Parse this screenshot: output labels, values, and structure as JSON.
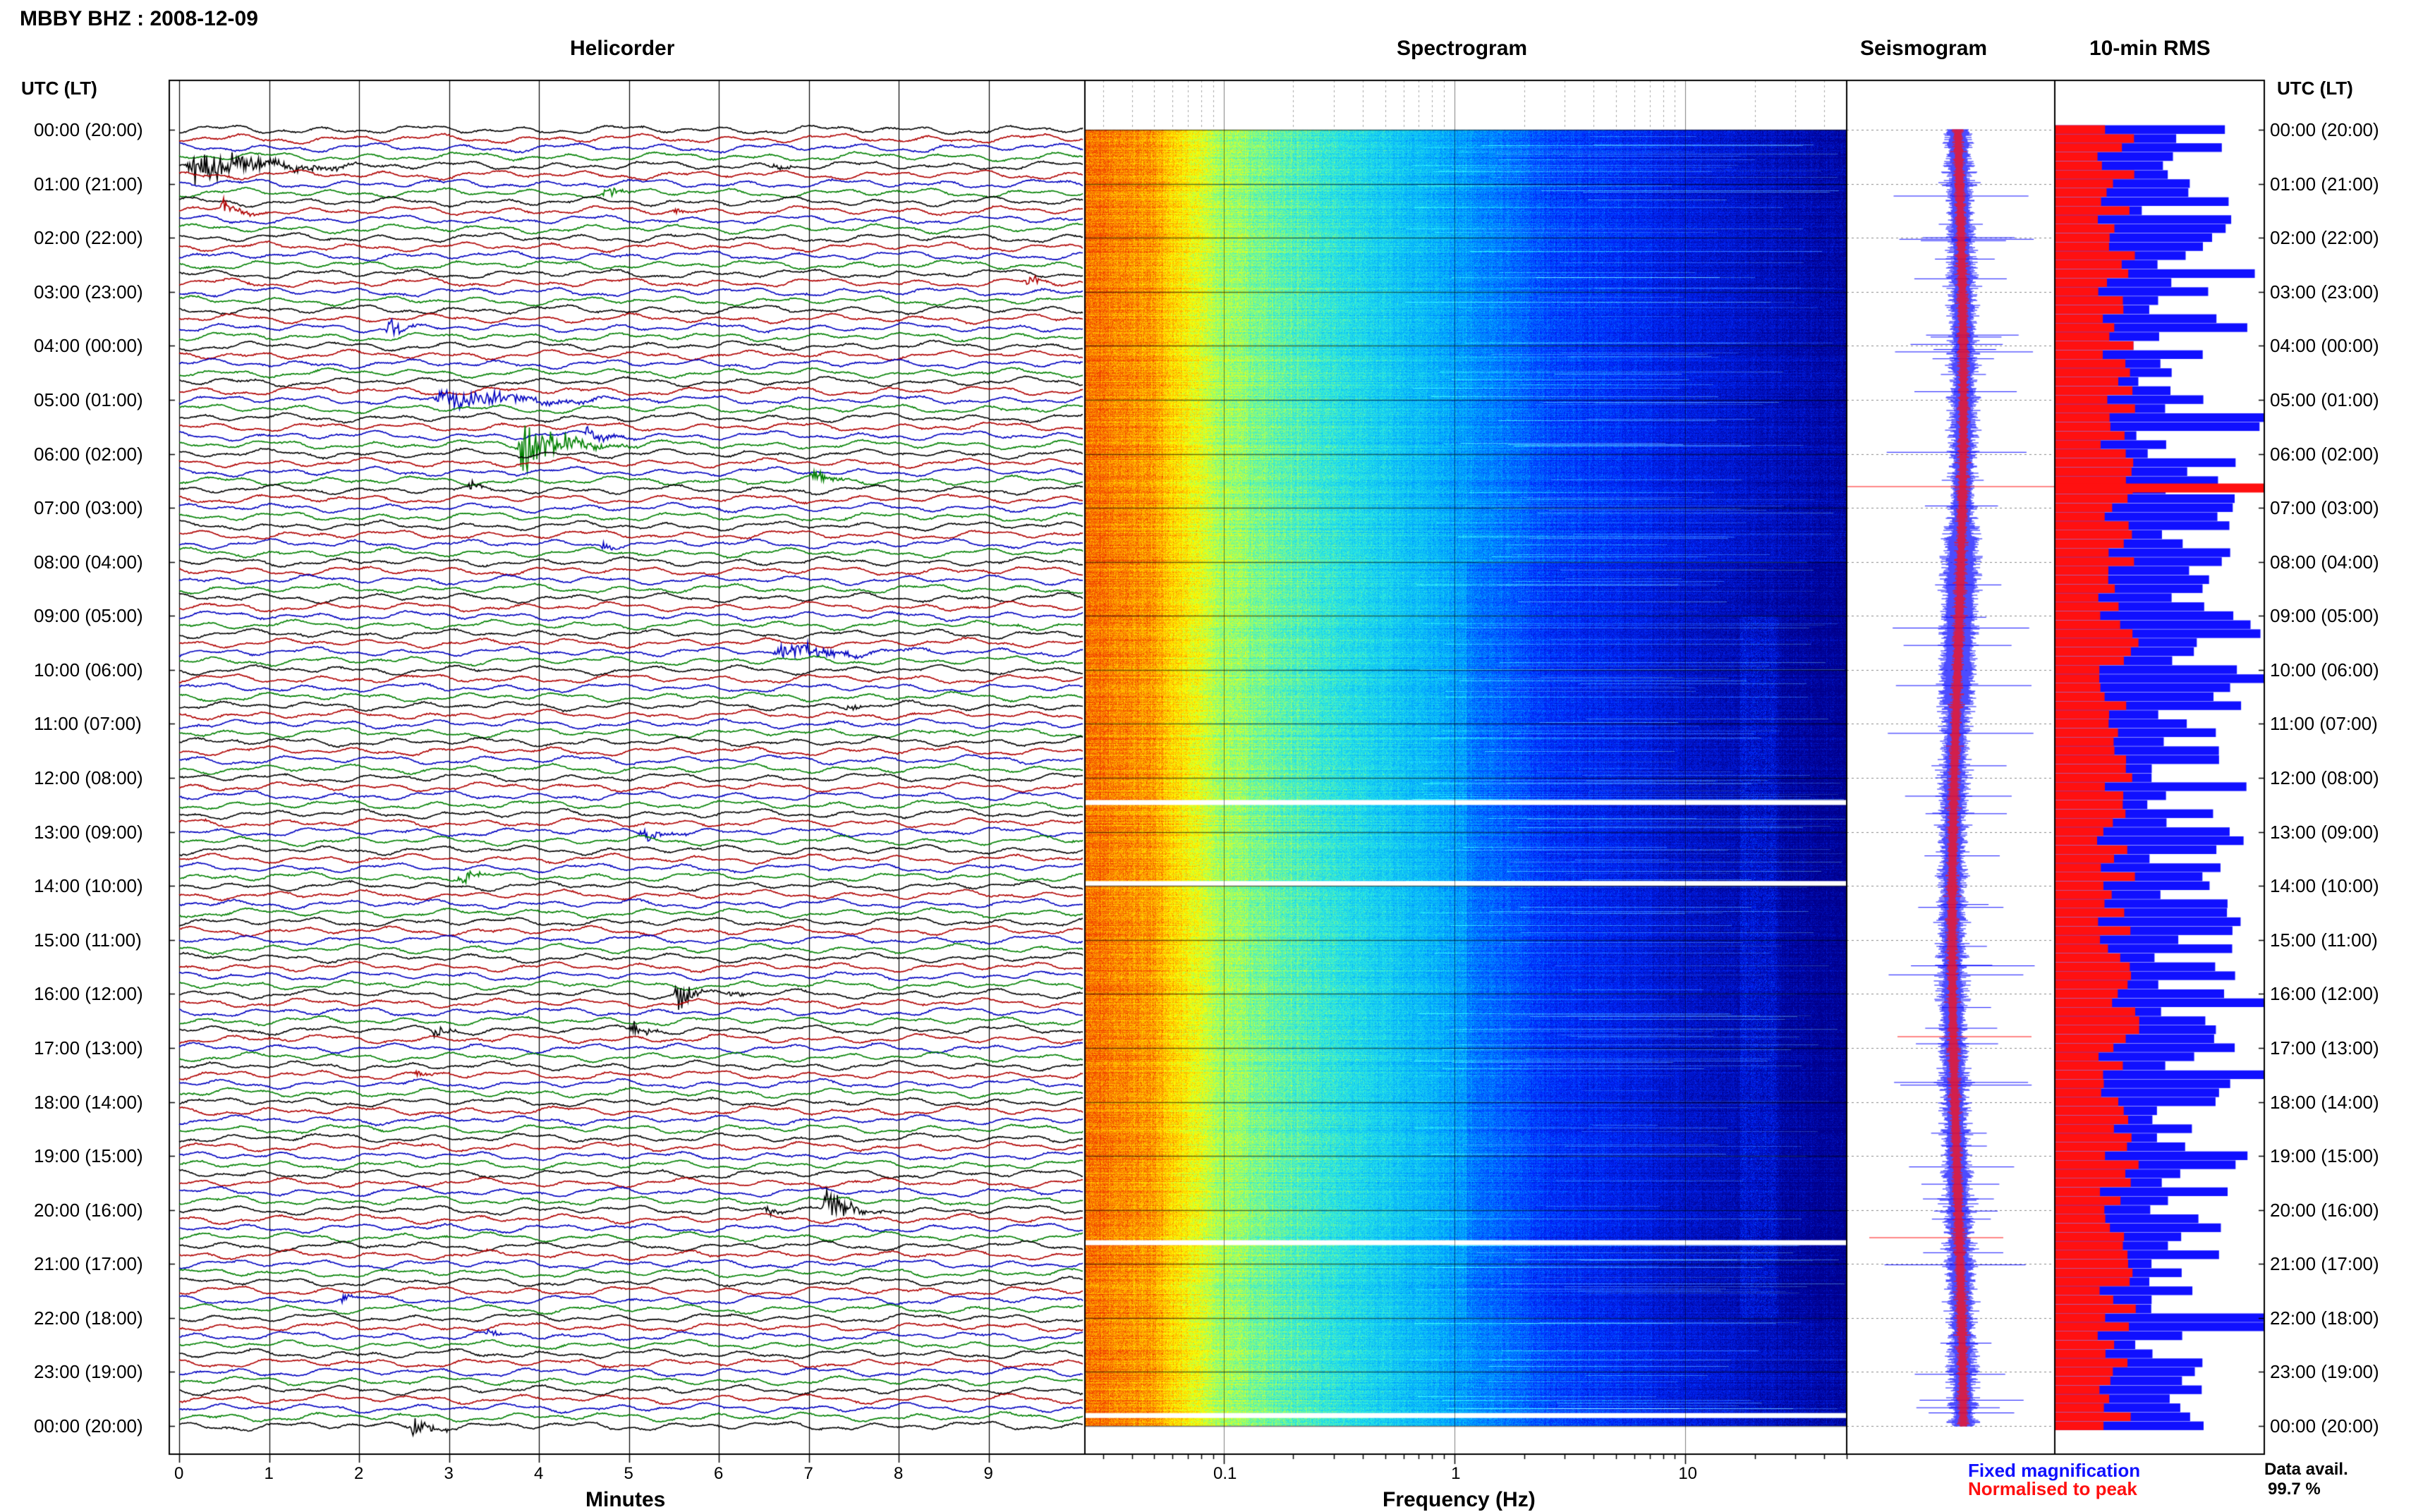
{
  "header": {
    "station_title": "MBBY BHZ : 2008-12-09"
  },
  "panels": {
    "helicorder": "Helicorder",
    "spectrogram": "Spectrogram",
    "seismogram": "Seismogram",
    "rms": "10-min RMS"
  },
  "axes": {
    "time_header_left": "UTC (LT)",
    "time_header_right": "UTC (LT)",
    "helicorder_xlabel": "Minutes",
    "spectrogram_xlabel": "Frequency (Hz)"
  },
  "legend": {
    "fixed_label": "Fixed magnification",
    "fixed_color": "#1010ff",
    "normalised_label": "Normalised to peak",
    "normalised_color": "#ff1010"
  },
  "availability": {
    "label": "Data avail.",
    "value": "99.7 %"
  },
  "chart_data": [
    {
      "type": "line",
      "title": "Helicorder",
      "xlabel": "Minutes",
      "x_ticks": [
        "0",
        "1",
        "2",
        "3",
        "4",
        "5",
        "6",
        "7",
        "8",
        "9"
      ],
      "x_range": [
        0,
        10
      ],
      "row_labels": [
        "00:00 (20:00)",
        "01:00 (21:00)",
        "02:00 (22:00)",
        "03:00 (23:00)",
        "04:00 (00:00)",
        "05:00 (01:00)",
        "06:00 (02:00)",
        "07:00 (03:00)",
        "08:00 (04:00)",
        "09:00 (05:00)",
        "10:00 (06:00)",
        "11:00 (07:00)",
        "12:00 (08:00)",
        "13:00 (09:00)",
        "14:00 (10:00)",
        "15:00 (11:00)",
        "16:00 (12:00)",
        "17:00 (13:00)",
        "18:00 (14:00)",
        "19:00 (15:00)",
        "20:00 (16:00)",
        "21:00 (17:00)",
        "22:00 (18:00)",
        "23:00 (19:00)",
        "00:00 (20:00)"
      ],
      "traces_per_hour": 6,
      "trace_colors": [
        "#000000",
        "#b00000",
        "#0000c0",
        "#008000"
      ],
      "events": [
        {
          "row": 4,
          "minute": 0.05,
          "amp": 2.6,
          "len": 3.2
        },
        {
          "row": 4,
          "minute": 6.6,
          "amp": 0.9,
          "len": 0.5
        },
        {
          "row": 9,
          "minute": 0.45,
          "amp": 1.3,
          "len": 0.9
        },
        {
          "row": 7,
          "minute": 4.7,
          "amp": 1.4,
          "len": 0.6
        },
        {
          "row": 9,
          "minute": 5.5,
          "amp": 0.7,
          "len": 0.6
        },
        {
          "row": 17,
          "minute": 9.4,
          "amp": 1.3,
          "len": 0.5
        },
        {
          "row": 22,
          "minute": 2.3,
          "amp": 2.0,
          "len": 0.6
        },
        {
          "row": 30,
          "minute": 2.8,
          "amp": 2.2,
          "len": 3.2
        },
        {
          "row": 35,
          "minute": 3.75,
          "amp": 4.5,
          "len": 1.8
        },
        {
          "row": 34,
          "minute": 4.5,
          "amp": 1.3,
          "len": 0.9
        },
        {
          "row": 39,
          "minute": 7.0,
          "amp": 1.1,
          "len": 1.0
        },
        {
          "row": 40,
          "minute": 3.2,
          "amp": 0.9,
          "len": 0.6
        },
        {
          "row": 46,
          "minute": 4.7,
          "amp": 1.1,
          "len": 0.4
        },
        {
          "row": 58,
          "minute": 6.6,
          "amp": 1.7,
          "len": 2.4
        },
        {
          "row": 64,
          "minute": 7.4,
          "amp": 1.0,
          "len": 0.6
        },
        {
          "row": 78,
          "minute": 5.1,
          "amp": 1.4,
          "len": 1.0
        },
        {
          "row": 83,
          "minute": 3.1,
          "amp": 1.7,
          "len": 0.6
        },
        {
          "row": 96,
          "minute": 5.5,
          "amp": 3.2,
          "len": 0.6
        },
        {
          "row": 96,
          "minute": 6.1,
          "amp": 1.3,
          "len": 0.5
        },
        {
          "row": 100,
          "minute": 2.8,
          "amp": 1.6,
          "len": 0.6
        },
        {
          "row": 100,
          "minute": 5.0,
          "amp": 1.7,
          "len": 0.6
        },
        {
          "row": 105,
          "minute": 2.6,
          "amp": 1.2,
          "len": 0.6
        },
        {
          "row": 120,
          "minute": 7.15,
          "amp": 2.7,
          "len": 1.0
        },
        {
          "row": 120,
          "minute": 6.5,
          "amp": 1.1,
          "len": 0.6
        },
        {
          "row": 130,
          "minute": 1.8,
          "amp": 1.0,
          "len": 0.5
        },
        {
          "row": 134,
          "minute": 3.4,
          "amp": 1.2,
          "len": 0.5
        },
        {
          "row": 144,
          "minute": 2.55,
          "amp": 2.4,
          "len": 0.8
        }
      ]
    },
    {
      "type": "heatmap",
      "title": "Spectrogram",
      "xlabel": "Frequency (Hz)",
      "x_scale": "log",
      "x_ticks": [
        "0.1",
        "1",
        "10"
      ],
      "x_range_hz": [
        0.025,
        50
      ],
      "gaps_hours": [
        12.45,
        13.95,
        20.6,
        23.8
      ]
    },
    {
      "type": "line",
      "title": "Seismogram",
      "series": [
        {
          "name": "Fixed magnification",
          "color": "#1010ff"
        },
        {
          "name": "Normalised to peak",
          "color": "#ff1010"
        }
      ]
    },
    {
      "type": "bar",
      "title": "10-min RMS",
      "series": [
        {
          "name": "Fixed magnification",
          "color": "#1010ff"
        },
        {
          "name": "Normalised to peak",
          "color": "#ff1010"
        }
      ]
    }
  ]
}
